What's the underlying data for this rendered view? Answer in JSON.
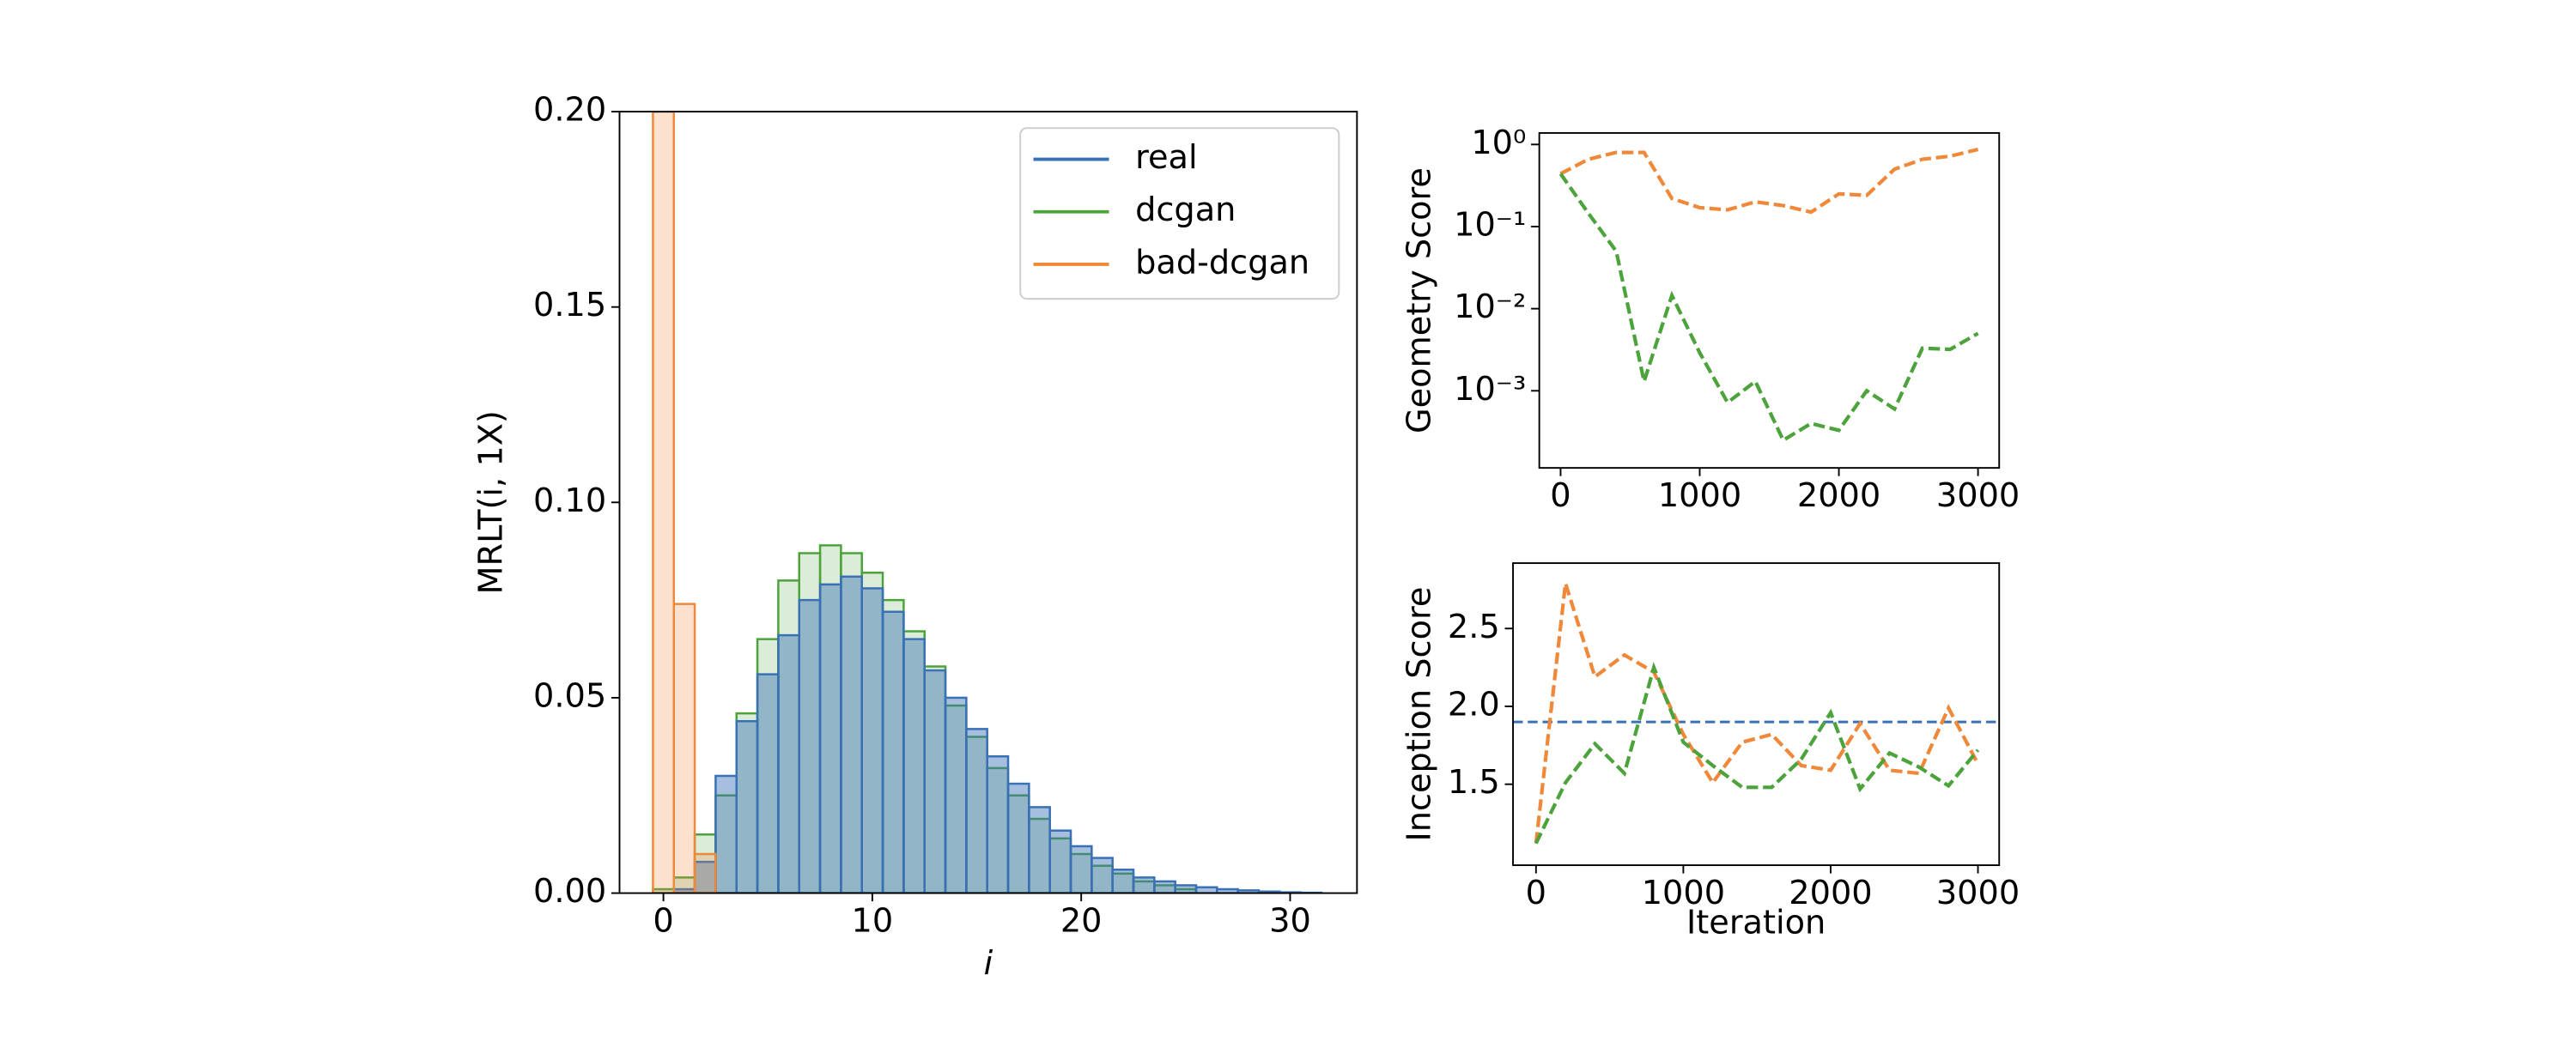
{
  "chart_data": [
    {
      "type": "histogram",
      "ylabel": "MRLT(i, 1X)",
      "xlabel": "i",
      "bins": [
        -0.5,
        0.5,
        1.5,
        2.5,
        3.5,
        4.5,
        5.5,
        6.5,
        7.5,
        8.5,
        9.5,
        10.5,
        11.5,
        12.5,
        13.5,
        14.5,
        15.5,
        16.5,
        17.5,
        18.5,
        19.5,
        20.5,
        21.5,
        22.5,
        23.5,
        24.5,
        25.5,
        26.5,
        27.5,
        28.5,
        29.5,
        30.5,
        31.5
      ],
      "series": [
        {
          "name": "real",
          "color": "#3a70b5",
          "values": [
            0,
            0.001,
            0.008,
            0.03,
            0.044,
            0.056,
            0.066,
            0.075,
            0.079,
            0.081,
            0.078,
            0.072,
            0.065,
            0.057,
            0.05,
            0.042,
            0.035,
            0.028,
            0.022,
            0.016,
            0.012,
            0.009,
            0.006,
            0.004,
            0.003,
            0.002,
            0.0015,
            0.001,
            0.0007,
            0.0004,
            0.0002,
            0.0001
          ]
        },
        {
          "name": "dcgan",
          "color": "#4ca33c",
          "values": [
            0.001,
            0.004,
            0.015,
            0.025,
            0.046,
            0.065,
            0.08,
            0.087,
            0.089,
            0.087,
            0.082,
            0.075,
            0.067,
            0.058,
            0.048,
            0.04,
            0.032,
            0.025,
            0.019,
            0.014,
            0.01,
            0.007,
            0.005,
            0.003,
            0.002,
            0.001,
            0,
            0,
            0,
            0,
            0,
            0
          ]
        },
        {
          "name": "bad-dcgan",
          "color": "#f0883a",
          "values": [
            0.2,
            0.074,
            0.01,
            0,
            0,
            0,
            0,
            0,
            0,
            0,
            0,
            0,
            0,
            0,
            0,
            0,
            0,
            0,
            0,
            0,
            0,
            0,
            0,
            0,
            0,
            0,
            0,
            0,
            0,
            0,
            0,
            0
          ]
        }
      ],
      "xlim": [
        -2.1,
        33.2
      ],
      "xticks": [
        0,
        10,
        20,
        30
      ],
      "ylim": [
        0,
        0.2
      ],
      "yticks": [
        {
          "value": 0,
          "label": "0.00"
        },
        {
          "value": 0.05,
          "label": "0.05"
        },
        {
          "value": 0.1,
          "label": "0.10"
        },
        {
          "value": 0.15,
          "label": "0.15"
        },
        {
          "value": 0.2,
          "label": "0.20"
        }
      ],
      "legend": "upper right"
    },
    {
      "type": "line",
      "ylabel": "Geometry Score",
      "yscale": "log",
      "x": [
        0,
        200,
        400,
        600,
        800,
        1000,
        1200,
        1400,
        1600,
        1800,
        2000,
        2200,
        2400,
        2600,
        2800,
        3000
      ],
      "series": [
        {
          "color": "#f0883a",
          "values": [
            0.44,
            0.66,
            0.8,
            0.8,
            0.22,
            0.17,
            0.16,
            0.2,
            0.18,
            0.15,
            0.25,
            0.24,
            0.5,
            0.66,
            0.72,
            0.87
          ]
        },
        {
          "color": "#4ca33c",
          "values": [
            0.44,
            0.145,
            0.05,
            0.0013,
            0.0145,
            0.0029,
            0.00072,
            0.0013,
            0.00025,
            0.0004,
            0.00033,
            0.001,
            0.0006,
            0.0033,
            0.0032,
            0.005
          ]
        }
      ],
      "xlim": [
        -153,
        3152
      ],
      "xticks": [
        0,
        1000,
        2000,
        3000
      ],
      "ylim": [
        0.000115,
        1.38
      ],
      "yticks": [
        {
          "value": 0.001,
          "label": "10⁻³"
        },
        {
          "value": 0.01,
          "label": "10⁻²"
        },
        {
          "value": 0.1,
          "label": "10⁻¹"
        },
        {
          "value": 1,
          "label": "10⁰"
        }
      ]
    },
    {
      "type": "line",
      "ylabel": "Inception Score",
      "xlabel": "Iteration",
      "x": [
        0,
        200,
        400,
        600,
        800,
        1000,
        1200,
        1400,
        1600,
        1800,
        2000,
        2200,
        2400,
        2600,
        2800,
        3000
      ],
      "series": [
        {
          "color": "#f0883a",
          "values": [
            1.12,
            2.79,
            2.19,
            2.33,
            2.22,
            1.82,
            1.51,
            1.77,
            1.82,
            1.62,
            1.59,
            1.89,
            1.59,
            1.57,
            1.99,
            1.63
          ]
        },
        {
          "color": "#4ca33c",
          "values": [
            1.12,
            1.51,
            1.76,
            1.57,
            2.25,
            1.77,
            1.62,
            1.48,
            1.48,
            1.66,
            1.96,
            1.47,
            1.7,
            1.61,
            1.49,
            1.72
          ]
        }
      ],
      "hline": {
        "value": 1.9,
        "color": "#3a70b5"
      },
      "xlim": [
        -156,
        3144
      ],
      "xticks": [
        0,
        1000,
        2000,
        3000
      ],
      "ylim": [
        0.98,
        2.92
      ],
      "yticks": [
        1.5,
        {
          "value": 2,
          "label": "2.0"
        },
        2.5
      ]
    }
  ]
}
